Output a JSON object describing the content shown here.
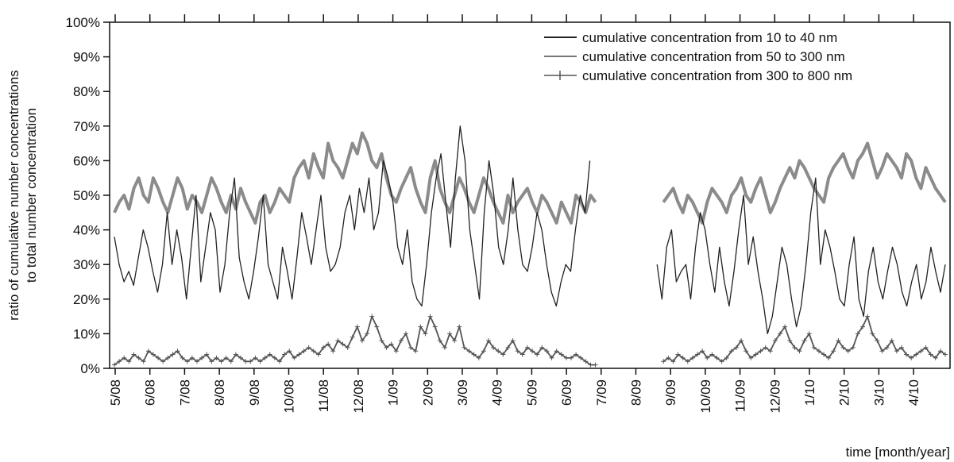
{
  "chart_data": {
    "type": "line",
    "title": "",
    "xlabel": "time [month/year]",
    "ylabel": "ratio of cumulative number concentrations to total number concentration",
    "ylabel_lines": [
      "ratio of cumulative number concentrations",
      "to total number concentration"
    ],
    "ylim": [
      0,
      100
    ],
    "y_ticks": [
      "0%",
      "10%",
      "20%",
      "30%",
      "40%",
      "50%",
      "60%",
      "70%",
      "80%",
      "90%",
      "100%"
    ],
    "x_ticks": [
      "5/08",
      "6/08",
      "7/08",
      "8/08",
      "9/08",
      "10/08",
      "11/08",
      "12/08",
      "1/09",
      "2/09",
      "3/09",
      "4/09",
      "5/09",
      "6/09",
      "7/09",
      "8/09",
      "9/09",
      "10/09",
      "11/09",
      "12/09",
      "1/10",
      "2/10",
      "3/10",
      "4/10"
    ],
    "grid": false,
    "legend_position": "top-right",
    "series": [
      {
        "name": "cumulative concentration from 10 to 40 nm",
        "color": "#222222",
        "style": "thin-dark-line",
        "values": [
          38,
          30,
          25,
          28,
          24,
          32,
          40,
          35,
          28,
          22,
          30,
          45,
          30,
          40,
          32,
          20,
          35,
          50,
          25,
          35,
          45,
          40,
          22,
          30,
          45,
          55,
          32,
          25,
          20,
          28,
          38,
          50,
          30,
          25,
          20,
          35,
          28,
          20,
          32,
          45,
          38,
          30,
          40,
          50,
          35,
          28,
          30,
          35,
          45,
          50,
          40,
          52,
          45,
          55,
          40,
          45,
          60,
          55,
          48,
          35,
          30,
          40,
          25,
          20,
          18,
          30,
          45,
          55,
          62,
          48,
          35,
          55,
          70,
          60,
          40,
          30,
          20,
          45,
          60,
          50,
          35,
          30,
          40,
          55,
          40,
          30,
          28,
          35,
          45,
          40,
          30,
          22,
          18,
          25,
          30,
          28,
          40,
          50,
          45,
          60,
          null,
          null,
          null,
          null,
          null,
          null,
          null,
          null,
          null,
          null,
          null,
          null,
          null,
          30,
          20,
          35,
          40,
          25,
          28,
          30,
          20,
          35,
          45,
          40,
          30,
          22,
          35,
          25,
          18,
          28,
          40,
          50,
          30,
          38,
          28,
          20,
          10,
          15,
          25,
          35,
          30,
          20,
          12,
          18,
          30,
          45,
          55,
          30,
          40,
          35,
          28,
          20,
          18,
          30,
          38,
          20,
          15,
          28,
          35,
          25,
          20,
          28,
          35,
          30,
          22,
          18,
          25,
          30,
          20,
          25,
          35,
          28,
          22,
          30
        ]
      },
      {
        "name": "cumulative concentration from 50 to 300 nm",
        "color": "#777777",
        "style": "thick-gray-line",
        "values": [
          45,
          48,
          50,
          46,
          52,
          55,
          50,
          48,
          55,
          52,
          48,
          45,
          50,
          55,
          52,
          46,
          50,
          48,
          45,
          50,
          55,
          52,
          48,
          45,
          50,
          46,
          52,
          48,
          45,
          42,
          48,
          50,
          45,
          48,
          52,
          50,
          48,
          55,
          58,
          60,
          55,
          62,
          58,
          55,
          65,
          60,
          58,
          55,
          60,
          65,
          62,
          68,
          65,
          60,
          58,
          62,
          55,
          50,
          48,
          52,
          55,
          58,
          52,
          48,
          45,
          55,
          60,
          52,
          48,
          45,
          50,
          55,
          52,
          48,
          45,
          50,
          55,
          52,
          48,
          45,
          42,
          50,
          45,
          48,
          50,
          52,
          48,
          45,
          50,
          48,
          45,
          42,
          48,
          45,
          42,
          50,
          48,
          45,
          50,
          48,
          null,
          null,
          null,
          null,
          null,
          null,
          null,
          null,
          null,
          null,
          null,
          null,
          null,
          48,
          50,
          52,
          48,
          45,
          50,
          48,
          45,
          42,
          48,
          52,
          50,
          48,
          45,
          50,
          52,
          55,
          50,
          48,
          52,
          55,
          50,
          45,
          48,
          52,
          55,
          58,
          55,
          60,
          58,
          55,
          52,
          50,
          48,
          55,
          58,
          60,
          62,
          58,
          55,
          60,
          62,
          65,
          60,
          55,
          58,
          62,
          60,
          58,
          55,
          62,
          60,
          55,
          52,
          58,
          55,
          52,
          50,
          48
        ]
      },
      {
        "name": "cumulative concentration from 300 to 800 nm",
        "color": "#555555",
        "style": "line-with-plus-markers",
        "values": [
          1,
          2,
          3,
          2,
          4,
          3,
          2,
          5,
          4,
          3,
          2,
          3,
          4,
          5,
          3,
          2,
          3,
          2,
          3,
          4,
          2,
          3,
          2,
          3,
          2,
          4,
          3,
          2,
          2,
          3,
          2,
          3,
          4,
          3,
          2,
          4,
          5,
          3,
          4,
          5,
          6,
          5,
          4,
          6,
          7,
          5,
          8,
          7,
          6,
          9,
          12,
          8,
          10,
          15,
          12,
          8,
          6,
          7,
          5,
          8,
          10,
          6,
          5,
          12,
          10,
          15,
          12,
          8,
          6,
          10,
          8,
          12,
          6,
          5,
          4,
          3,
          5,
          8,
          6,
          5,
          4,
          6,
          8,
          5,
          4,
          6,
          5,
          4,
          6,
          5,
          3,
          5,
          4,
          3,
          3,
          4,
          3,
          2,
          1,
          1,
          null,
          null,
          null,
          null,
          null,
          null,
          null,
          null,
          null,
          null,
          null,
          null,
          null,
          2,
          3,
          2,
          4,
          3,
          2,
          3,
          4,
          5,
          3,
          4,
          3,
          2,
          3,
          5,
          6,
          8,
          5,
          3,
          4,
          5,
          6,
          5,
          8,
          10,
          12,
          8,
          6,
          5,
          8,
          10,
          6,
          5,
          4,
          3,
          5,
          8,
          6,
          5,
          6,
          10,
          12,
          15,
          10,
          8,
          5,
          6,
          8,
          5,
          6,
          4,
          3,
          4,
          5,
          6,
          4,
          3,
          5,
          4
        ]
      }
    ]
  }
}
